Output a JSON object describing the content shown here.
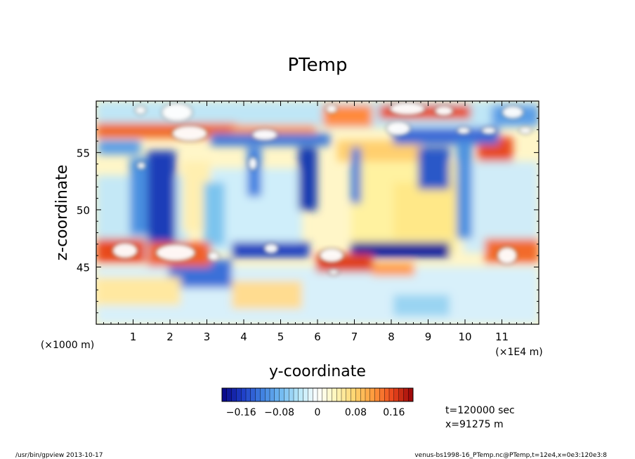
{
  "chart_data": {
    "type": "heatmap",
    "title": "PTemp",
    "xlabel": "y-coordinate",
    "ylabel": "z-coordinate",
    "x_scale_note": "(×1E4 m)",
    "y_scale_note": "(×1000 m)",
    "xlim": [
      0,
      12
    ],
    "ylim": [
      40,
      59.5
    ],
    "x_ticks": [
      1,
      2,
      3,
      4,
      5,
      6,
      7,
      8,
      9,
      10,
      11
    ],
    "x_tick_labels": [
      "1",
      "2",
      "3",
      "4",
      "5",
      "6",
      "7",
      "8",
      "9",
      "10",
      "11"
    ],
    "y_ticks": [
      45,
      50,
      55
    ],
    "y_tick_labels": [
      "45",
      "50",
      "55"
    ],
    "colorbar": {
      "range": [
        -0.2,
        0.2
      ],
      "tick_values": [
        -0.16,
        -0.08,
        0,
        0.08,
        0.16
      ],
      "tick_labels": [
        "−0.16",
        "−0.08",
        "0",
        "0.08",
        "0.16"
      ],
      "colors": [
        "#0a0a8c",
        "#1f3fc8",
        "#3e7fe0",
        "#6fb8f0",
        "#b8e8f8",
        "#ffffff",
        "#fff6b8",
        "#ffd46e",
        "#ff9a3c",
        "#ee4a1e",
        "#a00a0a"
      ]
    },
    "annotations": [
      "t=120000 sec",
      "x=91275 m"
    ],
    "grid": false
  },
  "footer": {
    "left": "/usr/bin/gpview  2013-10-17",
    "right": "venus-bs1998-16_PTemp.nc@PTemp,t=12e4,x=0e3:120e3:8"
  }
}
